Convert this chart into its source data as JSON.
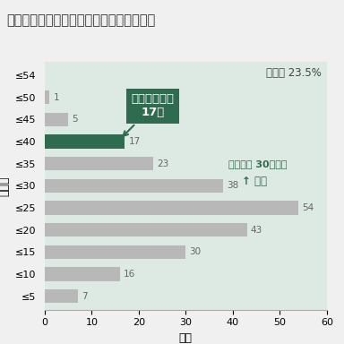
{
  "title": "タイプ３「地域社会への貢献」地域連携型",
  "categories": [
    "≤54",
    "≤50",
    "≤45",
    "≤40",
    "≤35",
    "≤30",
    "≤25",
    "≤20",
    "≤15",
    "≤10",
    "≤5"
  ],
  "values": [
    0,
    1,
    5,
    17,
    23,
    38,
    54,
    43,
    30,
    16,
    7
  ],
  "bar_colors": [
    "#b8b8b8",
    "#b8b8b8",
    "#b8b8b8",
    "#2e6b4f",
    "#b8b8b8",
    "#b8b8b8",
    "#b8b8b8",
    "#b8b8b8",
    "#b8b8b8",
    "#b8b8b8",
    "#b8b8b8"
  ],
  "background_color": "#ddeae3",
  "fig_bg_color": "#f0f0f0",
  "xlabel": "校数",
  "ylabel": "偏差値",
  "xlim": [
    0,
    60
  ],
  "selection_rate_text": "選定率 23.5%",
  "annotation_text": "芝浦工大含む\n17校",
  "annotation_bg": "#2e6b4f",
  "annotation_text_color": "#ffffff",
  "criteria_text1": "選定基準 30点以上",
  "criteria_text2": "↑ 選定",
  "value_label_color": "#666666",
  "title_color": "#333333",
  "criteria_color": "#2e6b4f"
}
